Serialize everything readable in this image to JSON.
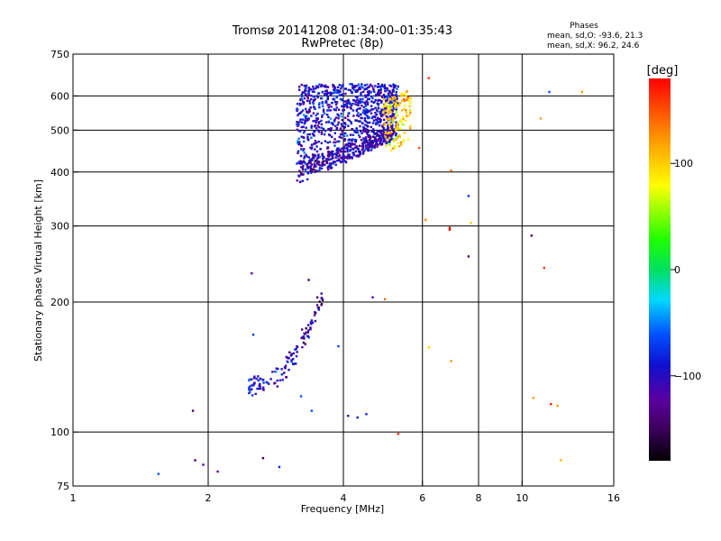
{
  "header": {
    "title": "Tromsø 20141208 01:34:00–01:35:43",
    "subtitle": "RwPretec (8p)"
  },
  "stats": {
    "heading": "Phases",
    "line_o": "mean, sd,O: -93.6, 21.3",
    "line_x": "mean, sd,X:  96.2, 24.6"
  },
  "colorbar": {
    "label": "[deg]",
    "range": [
      -180,
      180
    ],
    "ticks": [
      100,
      0,
      -100
    ],
    "tick_labels": [
      "100",
      "0",
      "−100"
    ]
  },
  "chart_data": {
    "type": "scatter",
    "xlabel": "Frequency [MHz]",
    "ylabel": "Stationary phase Virtual Height [km]",
    "xscale": "log",
    "yscale": "log",
    "xlim": [
      1,
      16
    ],
    "ylim": [
      75,
      750
    ],
    "xticks": [
      1,
      2,
      4,
      6,
      8,
      10,
      16
    ],
    "xtick_labels": [
      "1",
      "2",
      "4",
      "6",
      "8",
      "10",
      "16"
    ],
    "yticks": [
      75,
      100,
      200,
      300,
      400,
      500,
      600,
      750
    ],
    "ytick_labels": [
      "75",
      "100",
      "200",
      "300",
      "400",
      "500",
      "600",
      "750"
    ],
    "grid": true,
    "colorscale": "phase in degrees, -180 (black/purple) through blue, cyan, green, yellow to 180 (red)",
    "points_sample": [
      {
        "x": 1.55,
        "y": 80,
        "phase": -60
      },
      {
        "x": 1.85,
        "y": 112,
        "phase": -140
      },
      {
        "x": 1.87,
        "y": 86,
        "phase": -140
      },
      {
        "x": 1.95,
        "y": 84,
        "phase": -110
      },
      {
        "x": 2.1,
        "y": 81,
        "phase": -120
      },
      {
        "x": 2.5,
        "y": 233,
        "phase": -120
      },
      {
        "x": 2.52,
        "y": 168,
        "phase": -70
      },
      {
        "x": 2.65,
        "y": 87,
        "phase": -150
      },
      {
        "x": 2.88,
        "y": 83,
        "phase": -80
      },
      {
        "x": 3.22,
        "y": 121,
        "phase": -60
      },
      {
        "x": 3.4,
        "y": 112,
        "phase": -60
      },
      {
        "x": 3.35,
        "y": 225,
        "phase": -150
      },
      {
        "x": 3.5,
        "y": 205,
        "phase": -150
      },
      {
        "x": 3.6,
        "y": 202,
        "phase": -150
      },
      {
        "x": 3.9,
        "y": 158,
        "phase": -70
      },
      {
        "x": 4.1,
        "y": 109,
        "phase": -100
      },
      {
        "x": 4.3,
        "y": 108,
        "phase": -90
      },
      {
        "x": 4.5,
        "y": 110,
        "phase": -80
      },
      {
        "x": 4.65,
        "y": 205,
        "phase": -110
      },
      {
        "x": 4.95,
        "y": 203,
        "phase": 140
      },
      {
        "x": 5.3,
        "y": 99,
        "phase": 160
      },
      {
        "x": 5.9,
        "y": 455,
        "phase": 150
      },
      {
        "x": 6.1,
        "y": 310,
        "phase": 130
      },
      {
        "x": 6.2,
        "y": 660,
        "phase": 160
      },
      {
        "x": 6.2,
        "y": 157,
        "phase": 100
      },
      {
        "x": 6.9,
        "y": 297,
        "phase": 175
      },
      {
        "x": 6.9,
        "y": 294,
        "phase": 175
      },
      {
        "x": 6.95,
        "y": 403,
        "phase": 140
      },
      {
        "x": 6.95,
        "y": 146,
        "phase": 120
      },
      {
        "x": 7.6,
        "y": 352,
        "phase": -80
      },
      {
        "x": 7.6,
        "y": 255,
        "phase": -140
      },
      {
        "x": 7.7,
        "y": 305,
        "phase": 100
      },
      {
        "x": 10.5,
        "y": 285,
        "phase": -140
      },
      {
        "x": 10.6,
        "y": 120,
        "phase": 120
      },
      {
        "x": 11.0,
        "y": 532,
        "phase": 120
      },
      {
        "x": 11.2,
        "y": 240,
        "phase": 160
      },
      {
        "x": 11.5,
        "y": 613,
        "phase": -60
      },
      {
        "x": 11.6,
        "y": 116,
        "phase": 170
      },
      {
        "x": 12.0,
        "y": 115,
        "phase": 120
      },
      {
        "x": 12.2,
        "y": 86,
        "phase": 110
      },
      {
        "x": 13.6,
        "y": 613,
        "phase": 120
      }
    ]
  }
}
